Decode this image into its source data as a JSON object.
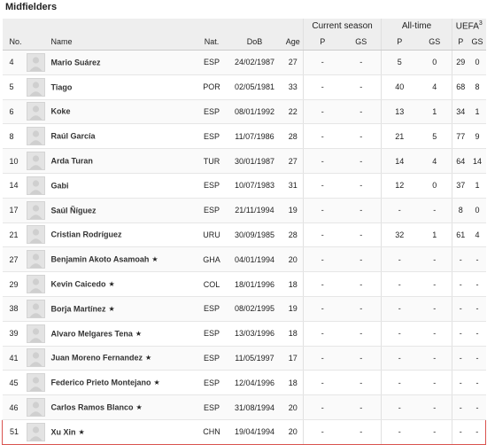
{
  "title": "Midfielders",
  "groups": {
    "current": "Current season",
    "alltime": "All-time",
    "uefa": "UEFA",
    "uefa_sup": "3"
  },
  "columns": {
    "no": "No.",
    "name": "Name",
    "nat": "Nat.",
    "dob": "DoB",
    "age": "Age",
    "cur_p": "P",
    "cur_gs": "GS",
    "all_p": "P",
    "all_gs": "GS",
    "u_p": "P",
    "u_gs": "GS"
  },
  "star_icon": "★",
  "players": [
    {
      "no": "4",
      "name": "Mario Suárez",
      "star": false,
      "nat": "ESP",
      "dob": "24/02/1987",
      "age": "27",
      "cur_p": "-",
      "cur_gs": "-",
      "all_p": "5",
      "all_gs": "0",
      "u_p": "29",
      "u_gs": "0"
    },
    {
      "no": "5",
      "name": "Tiago",
      "star": false,
      "nat": "POR",
      "dob": "02/05/1981",
      "age": "33",
      "cur_p": "-",
      "cur_gs": "-",
      "all_p": "40",
      "all_gs": "4",
      "u_p": "68",
      "u_gs": "8"
    },
    {
      "no": "6",
      "name": "Koke",
      "star": false,
      "nat": "ESP",
      "dob": "08/01/1992",
      "age": "22",
      "cur_p": "-",
      "cur_gs": "-",
      "all_p": "13",
      "all_gs": "1",
      "u_p": "34",
      "u_gs": "1"
    },
    {
      "no": "8",
      "name": "Raúl García",
      "star": false,
      "nat": "ESP",
      "dob": "11/07/1986",
      "age": "28",
      "cur_p": "-",
      "cur_gs": "-",
      "all_p": "21",
      "all_gs": "5",
      "u_p": "77",
      "u_gs": "9"
    },
    {
      "no": "10",
      "name": "Arda Turan",
      "star": false,
      "nat": "TUR",
      "dob": "30/01/1987",
      "age": "27",
      "cur_p": "-",
      "cur_gs": "-",
      "all_p": "14",
      "all_gs": "4",
      "u_p": "64",
      "u_gs": "14"
    },
    {
      "no": "14",
      "name": "Gabi",
      "star": false,
      "nat": "ESP",
      "dob": "10/07/1983",
      "age": "31",
      "cur_p": "-",
      "cur_gs": "-",
      "all_p": "12",
      "all_gs": "0",
      "u_p": "37",
      "u_gs": "1"
    },
    {
      "no": "17",
      "name": "Saúl Ñíguez",
      "star": false,
      "nat": "ESP",
      "dob": "21/11/1994",
      "age": "19",
      "cur_p": "-",
      "cur_gs": "-",
      "all_p": "-",
      "all_gs": "-",
      "u_p": "8",
      "u_gs": "0"
    },
    {
      "no": "21",
      "name": "Cristian Rodríguez",
      "star": false,
      "nat": "URU",
      "dob": "30/09/1985",
      "age": "28",
      "cur_p": "-",
      "cur_gs": "-",
      "all_p": "32",
      "all_gs": "1",
      "u_p": "61",
      "u_gs": "4"
    },
    {
      "no": "27",
      "name": "Benjamin Akoto Asamoah",
      "star": true,
      "nat": "GHA",
      "dob": "04/01/1994",
      "age": "20",
      "cur_p": "-",
      "cur_gs": "-",
      "all_p": "-",
      "all_gs": "-",
      "u_p": "-",
      "u_gs": "-"
    },
    {
      "no": "29",
      "name": "Kevin Caicedo",
      "star": true,
      "nat": "COL",
      "dob": "18/01/1996",
      "age": "18",
      "cur_p": "-",
      "cur_gs": "-",
      "all_p": "-",
      "all_gs": "-",
      "u_p": "-",
      "u_gs": "-"
    },
    {
      "no": "38",
      "name": "Borja Martínez",
      "star": true,
      "nat": "ESP",
      "dob": "08/02/1995",
      "age": "19",
      "cur_p": "-",
      "cur_gs": "-",
      "all_p": "-",
      "all_gs": "-",
      "u_p": "-",
      "u_gs": "-"
    },
    {
      "no": "39",
      "name": "Alvaro Melgares Tena",
      "star": true,
      "nat": "ESP",
      "dob": "13/03/1996",
      "age": "18",
      "cur_p": "-",
      "cur_gs": "-",
      "all_p": "-",
      "all_gs": "-",
      "u_p": "-",
      "u_gs": "-"
    },
    {
      "no": "41",
      "name": "Juan Moreno Fernandez",
      "star": true,
      "nat": "ESP",
      "dob": "11/05/1997",
      "age": "17",
      "cur_p": "-",
      "cur_gs": "-",
      "all_p": "-",
      "all_gs": "-",
      "u_p": "-",
      "u_gs": "-"
    },
    {
      "no": "45",
      "name": "Federico Prieto Montejano",
      "star": true,
      "nat": "ESP",
      "dob": "12/04/1996",
      "age": "18",
      "cur_p": "-",
      "cur_gs": "-",
      "all_p": "-",
      "all_gs": "-",
      "u_p": "-",
      "u_gs": "-"
    },
    {
      "no": "46",
      "name": "Carlos Ramos Blanco",
      "star": true,
      "nat": "ESP",
      "dob": "31/08/1994",
      "age": "20",
      "cur_p": "-",
      "cur_gs": "-",
      "all_p": "-",
      "all_gs": "-",
      "u_p": "-",
      "u_gs": "-"
    },
    {
      "no": "51",
      "name": "Xu Xin",
      "star": true,
      "nat": "CHN",
      "dob": "19/04/1994",
      "age": "20",
      "cur_p": "-",
      "cur_gs": "-",
      "all_p": "-",
      "all_gs": "-",
      "u_p": "-",
      "u_gs": "-",
      "highlighted": true
    }
  ],
  "colors": {
    "header_bg": "#eeeeee",
    "highlight_border": "#d9534f"
  }
}
